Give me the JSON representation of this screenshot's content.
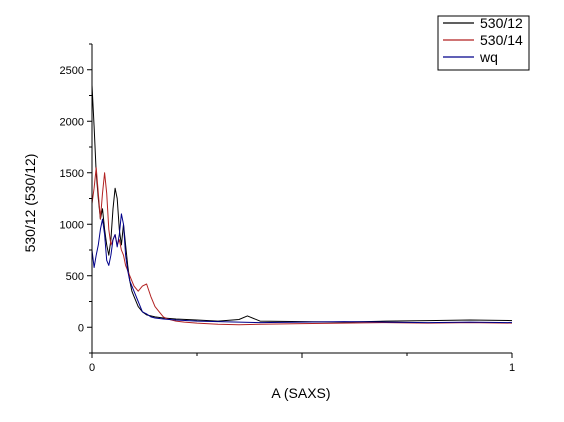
{
  "chart_data": {
    "type": "line",
    "xlabel": "A (SAXS)",
    "ylabel": "530/12 (530/12)",
    "xlim": [
      0,
      1
    ],
    "ylim": [
      -250,
      2750
    ],
    "x_ticks": [
      0,
      1
    ],
    "x_tick_labels": [
      "0",
      "1"
    ],
    "y_ticks": [
      0,
      500,
      1000,
      1500,
      2000,
      2500
    ],
    "y_tick_labels": [
      "0",
      "500",
      "1000",
      "1500",
      "2000",
      "2500"
    ],
    "grid": false,
    "legend_position": "top-right",
    "legend": [
      "530/12",
      "530/14",
      "wq"
    ],
    "series": [
      {
        "name": "530/12",
        "color": "#000000",
        "x": [
          0,
          0.005,
          0.01,
          0.015,
          0.02,
          0.025,
          0.03,
          0.035,
          0.04,
          0.045,
          0.05,
          0.055,
          0.06,
          0.065,
          0.07,
          0.075,
          0.08,
          0.085,
          0.09,
          0.095,
          0.1,
          0.11,
          0.12,
          0.13,
          0.14,
          0.15,
          0.17,
          0.2,
          0.25,
          0.3,
          0.35,
          0.37,
          0.4,
          0.5,
          0.6,
          0.7,
          0.8,
          0.9,
          1.0
        ],
        "y": [
          2350,
          1950,
          1500,
          1250,
          1050,
          1150,
          950,
          800,
          700,
          850,
          1150,
          1350,
          1250,
          950,
          800,
          1000,
          800,
          600,
          450,
          350,
          300,
          200,
          150,
          120,
          110,
          100,
          90,
          80,
          70,
          60,
          75,
          110,
          60,
          55,
          50,
          60,
          65,
          70,
          65
        ]
      },
      {
        "name": "530/14",
        "color": "#b22222",
        "x": [
          0,
          0.005,
          0.01,
          0.015,
          0.02,
          0.025,
          0.03,
          0.035,
          0.04,
          0.045,
          0.05,
          0.055,
          0.06,
          0.065,
          0.07,
          0.075,
          0.08,
          0.09,
          0.1,
          0.11,
          0.12,
          0.13,
          0.14,
          0.15,
          0.16,
          0.17,
          0.18,
          0.2,
          0.22,
          0.25,
          0.3,
          0.35,
          0.4,
          0.5,
          0.6,
          0.7,
          0.8,
          0.9,
          1.0
        ],
        "y": [
          1200,
          1350,
          1550,
          1300,
          1050,
          1300,
          1500,
          1300,
          950,
          800,
          850,
          900,
          800,
          850,
          750,
          700,
          600,
          500,
          400,
          350,
          400,
          420,
          300,
          200,
          150,
          100,
          80,
          60,
          50,
          40,
          30,
          25,
          30,
          35,
          40,
          45,
          40,
          45,
          40
        ]
      },
      {
        "name": "wq",
        "color": "#00008b",
        "x": [
          0,
          0.005,
          0.01,
          0.015,
          0.02,
          0.025,
          0.03,
          0.035,
          0.04,
          0.045,
          0.05,
          0.055,
          0.06,
          0.065,
          0.07,
          0.075,
          0.08,
          0.085,
          0.09,
          0.1,
          0.11,
          0.12,
          0.13,
          0.14,
          0.15,
          0.17,
          0.2,
          0.25,
          0.3,
          0.35,
          0.4,
          0.5,
          0.6,
          0.7,
          0.8,
          0.9,
          1.0
        ],
        "y": [
          750,
          580,
          700,
          800,
          950,
          1050,
          900,
          650,
          600,
          700,
          850,
          900,
          780,
          900,
          1100,
          1000,
          700,
          550,
          450,
          350,
          250,
          150,
          130,
          100,
          90,
          80,
          70,
          60,
          55,
          50,
          45,
          50,
          55,
          50,
          45,
          50,
          45
        ]
      }
    ]
  }
}
